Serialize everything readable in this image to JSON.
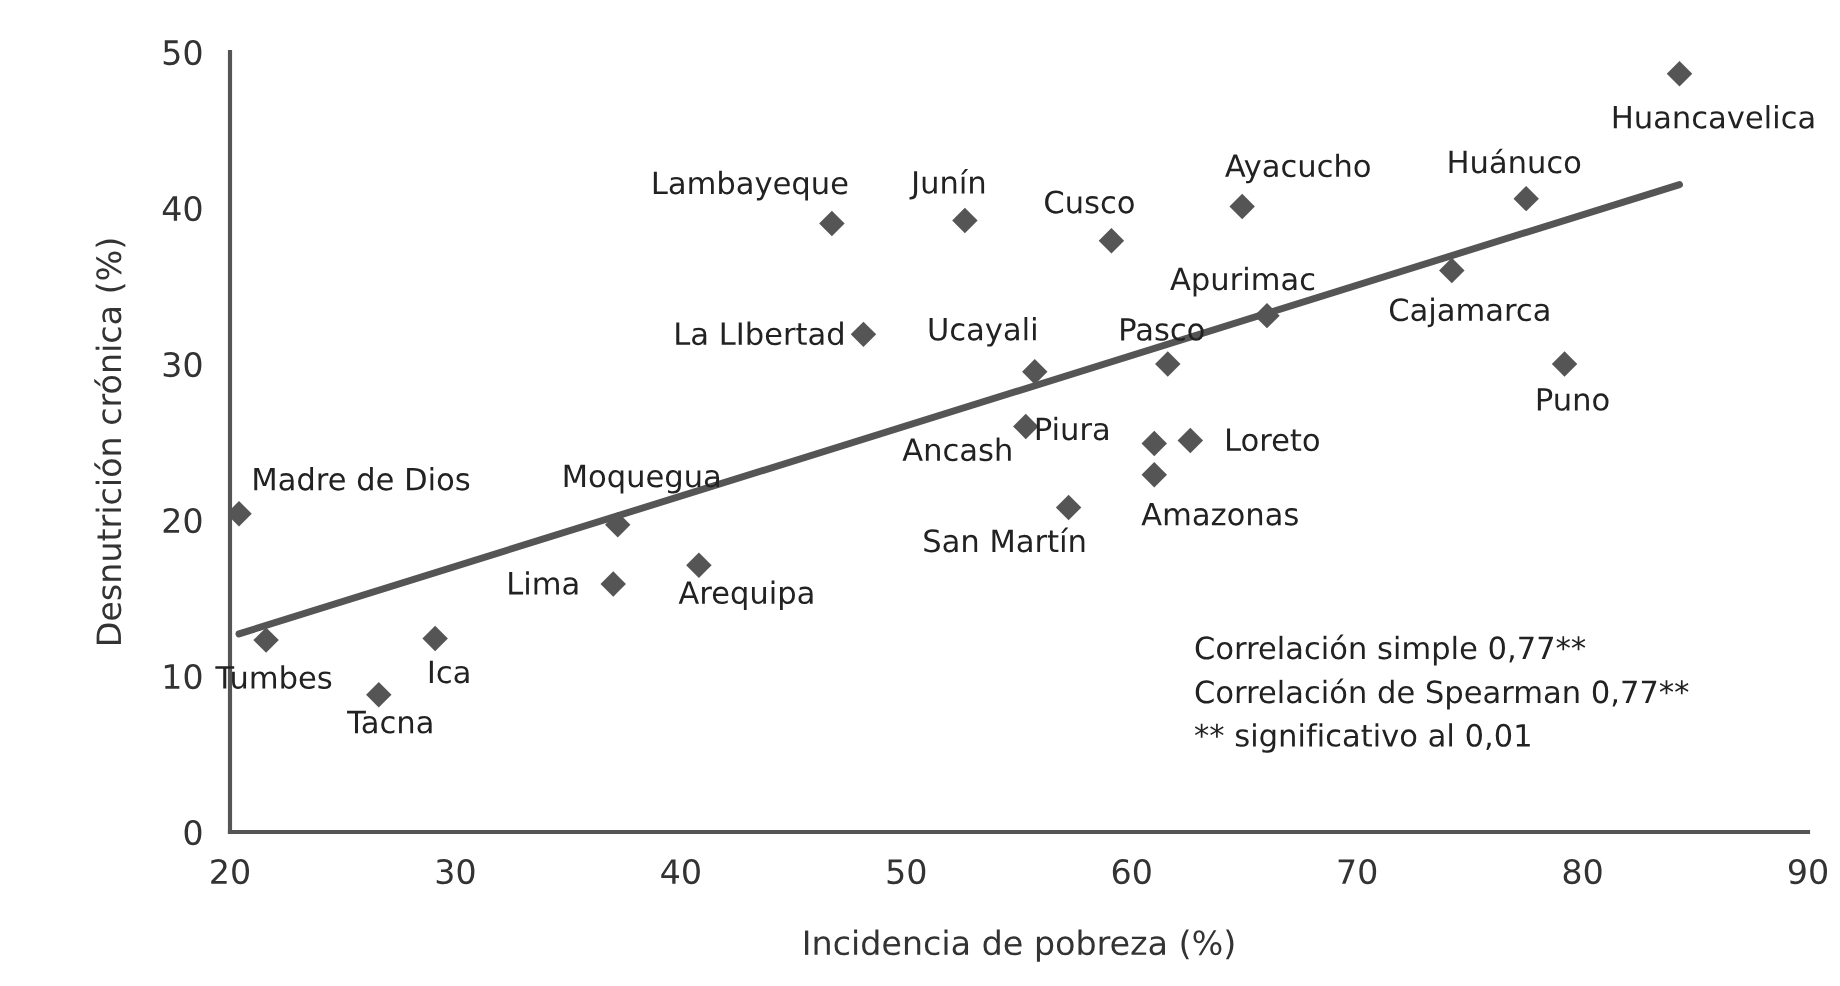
{
  "chart_data": {
    "type": "scatter",
    "xlabel": "Incidencia de pobreza (%)",
    "ylabel": "Desnutrición crónica (%)",
    "xlim": [
      20,
      90
    ],
    "xticks": [
      20,
      30,
      40,
      50,
      60,
      70,
      80,
      90
    ],
    "ylim": [
      0,
      50
    ],
    "yticks": [
      0,
      10,
      20,
      30,
      40,
      50
    ],
    "grid": false,
    "series": [
      {
        "color": "#555555",
        "marker": "diamond",
        "x": [
          20.4,
          21.6,
          26.6,
          29.1,
          37.0,
          37.2,
          40.8,
          46.7,
          48.1,
          52.6,
          55.7,
          55.3,
          57.2,
          59.1,
          61.0,
          61.0,
          62.6,
          61.6,
          64.9,
          66.0,
          74.2,
          77.5,
          79.2,
          84.3
        ],
        "values": [
          20.4,
          12.3,
          8.8,
          12.4,
          15.9,
          19.7,
          17.1,
          39.0,
          31.9,
          39.2,
          29.5,
          26.0,
          20.8,
          37.9,
          24.9,
          22.9,
          25.1,
          30.0,
          40.1,
          33.1,
          36.0,
          40.6,
          30.0,
          48.6
        ]
      },
      {
        "type": "line",
        "color": "#555555",
        "marker": "none",
        "line_style": "solid",
        "x": [
          20.4,
          84.3
        ],
        "values": [
          12.7,
          41.5
        ]
      }
    ],
    "annotations": [
      {
        "text": "Madre de Dios",
        "x": 20.4,
        "y": 20.4
      },
      {
        "text": "Tumbes",
        "x": 21.6,
        "y": 12.3
      },
      {
        "text": "Tacna",
        "x": 26.6,
        "y": 8.8
      },
      {
        "text": "Ica",
        "x": 29.1,
        "y": 12.4
      },
      {
        "text": "Lima",
        "x": 37.0,
        "y": 15.9
      },
      {
        "text": "Moquegua",
        "x": 37.2,
        "y": 19.7
      },
      {
        "text": "Arequipa",
        "x": 40.8,
        "y": 17.1
      },
      {
        "text": "Lambayeque",
        "x": 46.7,
        "y": 39.0
      },
      {
        "text": "La LIbertad",
        "x": 48.1,
        "y": 31.9
      },
      {
        "text": "Junín",
        "x": 52.6,
        "y": 39.2
      },
      {
        "text": "Ucayali",
        "x": 55.7,
        "y": 29.5
      },
      {
        "text": "Ancash",
        "x": 55.3,
        "y": 26.0
      },
      {
        "text": "San Martín",
        "x": 57.2,
        "y": 20.8
      },
      {
        "text": "Cusco",
        "x": 59.1,
        "y": 37.9
      },
      {
        "text": "Piura",
        "x": 61.0,
        "y": 24.9
      },
      {
        "text": "Amazonas",
        "x": 61.0,
        "y": 22.9
      },
      {
        "text": "Loreto",
        "x": 62.6,
        "y": 25.1
      },
      {
        "text": "Pasco",
        "x": 61.6,
        "y": 30.0
      },
      {
        "text": "Ayacucho",
        "x": 64.9,
        "y": 40.1
      },
      {
        "text": "Apurimac",
        "x": 66.0,
        "y": 33.1
      },
      {
        "text": "Cajamarca",
        "x": 74.2,
        "y": 36.0
      },
      {
        "text": "Huánuco",
        "x": 77.5,
        "y": 40.6
      },
      {
        "text": "Puno",
        "x": 79.2,
        "y": 30.0
      },
      {
        "text": "Huancavelica",
        "x": 84.3,
        "y": 48.6
      },
      "Correlación simple 0,77**",
      "Correlación de Spearman 0,77**",
      "** significativo al 0,01"
    ]
  }
}
